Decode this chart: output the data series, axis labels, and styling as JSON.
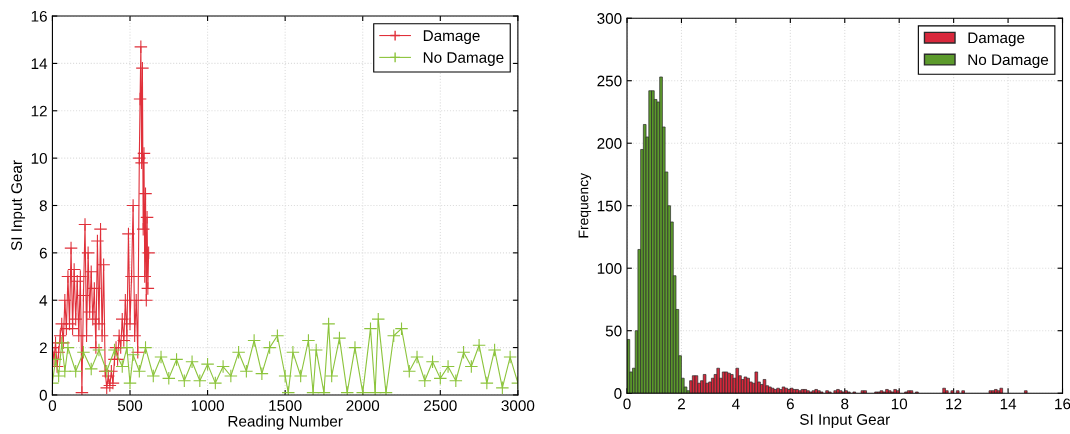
{
  "chart_data": [
    {
      "type": "line",
      "xlabel": "Reading Number",
      "ylabel": "SI Input Gear",
      "xlim": [
        0,
        3000
      ],
      "ylim": [
        0,
        16
      ],
      "xticks": [
        0,
        500,
        1000,
        1500,
        2000,
        2500,
        3000
      ],
      "yticks": [
        0,
        2,
        4,
        6,
        8,
        10,
        12,
        14,
        16
      ],
      "grid": true,
      "legend": "top right",
      "marker": "cross",
      "series": [
        {
          "name": "Damage",
          "color": "#e0303a",
          "x": [
            0,
            10,
            20,
            30,
            40,
            50,
            60,
            70,
            80,
            90,
            100,
            110,
            120,
            130,
            140,
            150,
            160,
            170,
            180,
            190,
            200,
            210,
            220,
            230,
            240,
            250,
            260,
            270,
            280,
            290,
            300,
            310,
            320,
            330,
            340,
            350,
            360,
            370,
            380,
            390,
            400,
            410,
            420,
            430,
            440,
            450,
            460,
            470,
            480,
            490,
            500,
            510,
            520,
            530,
            540,
            550,
            560,
            565,
            570,
            575,
            580,
            585,
            590,
            595,
            600,
            605,
            610,
            615,
            620
          ],
          "values": [
            2.0,
            1.5,
            2.2,
            1.2,
            1.8,
            2.5,
            3.0,
            2.2,
            4.0,
            2.8,
            5.0,
            3.0,
            6.2,
            2.8,
            5.3,
            3.2,
            4.8,
            2.5,
            5.0,
            0.1,
            4.2,
            7.2,
            2.5,
            6.0,
            3.5,
            5.2,
            3.2,
            4.5,
            2.0,
            6.5,
            3.0,
            7.0,
            2.5,
            5.5,
            1.0,
            0.3,
            0.8,
            0.4,
            1.0,
            0.5,
            1.5,
            2.0,
            1.5,
            2.5,
            2.0,
            3.2,
            2.3,
            4.0,
            2.5,
            6.8,
            3.0,
            5.0,
            8.0,
            2.5,
            4.0,
            1.8,
            10.0,
            12.5,
            14.7,
            9.8,
            13.8,
            7.0,
            10.2,
            5.0,
            8.5,
            4.0,
            7.5,
            4.5,
            6.0
          ]
        },
        {
          "name": "No Damage",
          "color": "#8cc43c",
          "x": [
            0,
            20,
            40,
            60,
            80,
            100,
            150,
            200,
            250,
            300,
            350,
            400,
            450,
            480,
            500,
            520,
            560,
            600,
            650,
            700,
            750,
            800,
            850,
            900,
            950,
            1000,
            1050,
            1100,
            1150,
            1200,
            1250,
            1300,
            1350,
            1400,
            1450,
            1500,
            1520,
            1550,
            1600,
            1650,
            1680,
            1700,
            1750,
            1780,
            1800,
            1850,
            1900,
            1950,
            2000,
            2050,
            2080,
            2100,
            2150,
            2200,
            2250,
            2300,
            2350,
            2400,
            2450,
            2500,
            2550,
            2600,
            2650,
            2700,
            2750,
            2800,
            2850,
            2900,
            2950,
            3000
          ],
          "values": [
            0.5,
            1.5,
            0.8,
            2.2,
            1.0,
            2.0,
            1.0,
            1.8,
            1.1,
            1.9,
            1.0,
            1.9,
            1.2,
            2.0,
            0.5,
            1.7,
            1.0,
            2.0,
            0.8,
            1.6,
            0.7,
            1.5,
            0.6,
            1.4,
            0.6,
            1.3,
            0.5,
            1.2,
            0.8,
            1.8,
            1.0,
            2.3,
            0.9,
            2.0,
            2.5,
            0.8,
            0.1,
            1.8,
            0.8,
            2.3,
            0.1,
            1.9,
            0.1,
            3.0,
            0.8,
            2.4,
            0.1,
            2.0,
            0.1,
            2.8,
            0.1,
            3.2,
            0.1,
            2.5,
            2.8,
            1.0,
            1.6,
            0.6,
            1.4,
            0.7,
            1.2,
            0.6,
            1.8,
            1.2,
            2.1,
            0.5,
            1.9,
            0.3,
            1.6,
            0.5
          ]
        }
      ]
    },
    {
      "type": "histogram",
      "xlabel": "SI Input Gear",
      "ylabel": "Frequency",
      "xlim": [
        0,
        16
      ],
      "ylim": [
        0,
        300
      ],
      "xticks": [
        0,
        2,
        4,
        6,
        8,
        10,
        12,
        14,
        16
      ],
      "yticks": [
        0,
        50,
        100,
        150,
        200,
        250,
        300
      ],
      "grid": true,
      "legend": "top right",
      "bins": [
        0,
        0.1,
        0.2,
        0.3,
        0.4,
        0.5,
        0.6,
        0.7,
        0.8,
        0.9,
        1.0,
        1.1,
        1.2,
        1.3,
        1.4,
        1.5,
        1.6,
        1.7,
        1.8,
        1.9,
        2.0,
        2.1,
        2.2,
        2.3,
        2.4,
        2.5,
        2.6,
        2.7,
        2.8,
        2.9,
        3.0,
        3.1,
        3.2,
        3.3,
        3.4,
        3.5,
        3.6,
        3.7,
        3.8,
        3.9,
        4.0,
        4.1,
        4.2,
        4.3,
        4.4,
        4.5,
        4.6,
        4.7,
        4.8,
        4.9,
        5.0,
        5.1,
        5.2,
        5.3,
        5.4,
        5.5,
        5.6,
        5.7,
        5.8,
        5.9,
        6.0,
        6.1,
        6.2,
        6.3,
        6.4,
        6.5,
        6.6,
        6.7,
        6.8,
        6.9,
        7.0,
        7.1,
        7.2,
        7.3,
        7.4,
        7.5,
        7.6,
        7.7,
        7.8,
        7.9,
        8.0,
        8.1,
        8.2,
        8.3,
        8.4,
        8.5,
        8.6,
        8.7,
        8.8,
        8.9,
        9.0,
        9.1,
        9.2,
        9.3,
        9.4,
        9.5,
        9.6,
        9.7,
        9.8,
        9.9,
        10.0,
        10.1,
        10.2,
        10.3,
        10.4,
        10.5,
        10.6,
        10.7,
        10.8,
        10.9,
        11.0,
        11.1,
        11.2,
        11.3,
        11.4,
        11.5,
        11.6,
        11.7,
        11.8,
        11.9,
        12.0,
        12.1,
        12.2,
        12.3,
        12.4,
        12.5,
        12.6,
        12.7,
        12.8,
        12.9,
        13.0,
        13.1,
        13.2,
        13.3,
        13.4,
        13.5,
        13.6,
        13.7,
        13.8,
        13.9,
        14.0,
        14.1,
        14.2,
        14.3,
        14.4,
        14.5,
        14.6,
        14.7,
        14.8,
        14.9,
        15.0
      ],
      "series": [
        {
          "name": "Damage",
          "color": "#d8283c",
          "values": [
            null,
            null,
            null,
            null,
            null,
            null,
            null,
            null,
            null,
            null,
            null,
            null,
            null,
            null,
            null,
            null,
            null,
            null,
            null,
            null,
            null,
            null,
            null,
            10,
            14,
            14,
            8,
            10,
            15,
            8,
            9,
            12,
            15,
            20,
            12,
            17,
            17,
            16,
            15,
            12,
            20,
            14,
            11,
            13,
            12,
            9,
            8,
            17,
            9,
            7,
            11,
            6,
            5,
            4,
            3,
            4,
            3,
            5,
            4,
            3,
            4,
            3,
            3,
            2,
            3,
            3,
            2,
            1,
            2,
            3,
            2,
            1,
            0,
            2,
            1,
            0,
            2,
            3,
            2,
            1,
            2,
            1,
            0,
            1,
            0,
            0,
            2,
            2,
            0,
            0,
            0,
            1,
            1,
            2,
            1,
            3,
            2,
            1,
            3,
            2,
            0,
            0,
            1,
            2,
            2,
            0,
            1,
            0,
            0,
            0,
            0,
            0,
            0,
            0,
            0,
            0,
            4,
            2,
            0,
            2,
            0,
            2,
            0,
            2,
            0,
            0,
            0,
            0,
            0,
            0,
            0,
            0,
            0,
            2,
            2,
            3,
            2,
            4,
            0,
            0,
            0,
            0,
            0,
            0,
            0,
            0,
            2,
            0,
            0,
            0
          ]
        },
        {
          "name": "No Damage",
          "color": "#5c9a2c",
          "values": [
            43,
            17,
            20,
            50,
            115,
            195,
            215,
            205,
            242,
            242,
            235,
            233,
            253,
            213,
            177,
            150,
            137,
            94,
            67,
            30,
            12,
            5,
            2,
            null,
            null,
            null,
            null,
            null,
            null,
            null,
            null,
            null,
            null,
            null,
            null,
            null,
            null,
            null,
            null,
            null,
            null,
            null,
            null,
            null,
            null,
            null,
            null,
            null,
            null,
            null,
            null,
            null,
            null,
            null,
            null,
            null,
            null,
            null,
            null,
            null,
            null,
            null,
            null,
            null,
            null,
            null,
            null,
            null,
            null,
            null,
            null,
            null,
            null,
            null,
            null,
            null,
            null,
            null,
            null,
            null,
            null,
            null,
            null,
            null,
            null,
            null,
            null,
            null,
            null,
            null,
            null,
            null,
            null,
            null,
            null,
            null,
            null,
            null,
            null,
            null,
            null,
            null,
            null,
            null,
            null,
            null,
            null,
            null,
            null,
            null,
            null,
            null,
            null,
            null,
            null,
            null,
            null,
            null,
            null,
            null,
            null,
            null,
            null,
            null,
            null,
            null,
            null,
            null,
            null,
            null,
            null,
            null,
            null,
            null,
            null,
            null,
            null,
            null,
            null,
            null,
            null,
            null,
            null,
            null,
            null,
            null,
            null,
            null,
            null,
            null
          ]
        }
      ]
    }
  ]
}
